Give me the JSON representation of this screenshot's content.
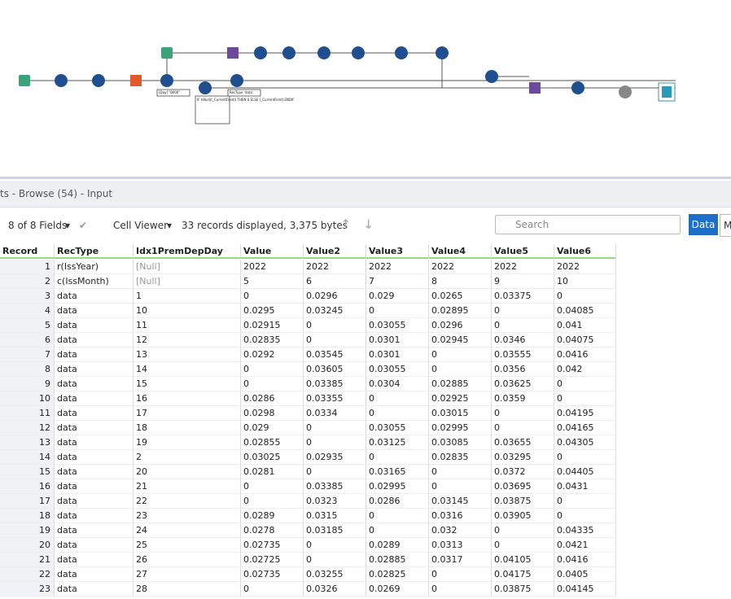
{
  "panel_title": "ts - Browse (54) - Input",
  "toolbar": {
    "fields": "8 of 8 Fields",
    "viewer": "Cell Viewer",
    "summary": "33 records displayed, 3,375 bytes",
    "search": "Search",
    "data_button": "Data",
    "m_button": "M"
  },
  "table": {
    "columns": [
      "Record",
      "RecType",
      "Idx1PremDepDay",
      "Value",
      "Value2",
      "Value3",
      "Value4",
      "Value5",
      "Value6"
    ],
    "rows": [
      [
        "1",
        "r(IssYear)",
        "[Null]",
        "2022",
        "2022",
        "2022",
        "2022",
        "2022",
        "2022"
      ],
      [
        "2",
        "c(IssMonth)",
        "[Null]",
        "5",
        "6",
        "7",
        "8",
        "9",
        "10"
      ],
      [
        "3",
        "data",
        "1",
        "0",
        "0.0296",
        "0.029",
        "0.0265",
        "0.03375",
        "0"
      ],
      [
        "4",
        "data",
        "10",
        "0.0295",
        "0.03245",
        "0",
        "0.02895",
        "0",
        "0.04085"
      ],
      [
        "5",
        "data",
        "11",
        "0.02915",
        "0",
        "0.03055",
        "0.0296",
        "0",
        "0.041"
      ],
      [
        "6",
        "data",
        "12",
        "0.02835",
        "0",
        "0.0301",
        "0.02945",
        "0.0346",
        "0.04075"
      ],
      [
        "7",
        "data",
        "13",
        "0.0292",
        "0.03545",
        "0.0301",
        "0",
        "0.03555",
        "0.0416"
      ],
      [
        "8",
        "data",
        "14",
        "0",
        "0.03605",
        "0.03055",
        "0",
        "0.0356",
        "0.042"
      ],
      [
        "9",
        "data",
        "15",
        "0",
        "0.03385",
        "0.0304",
        "0.02885",
        "0.03625",
        "0"
      ],
      [
        "10",
        "data",
        "16",
        "0.0286",
        "0.03355",
        "0",
        "0.02925",
        "0.0359",
        "0"
      ],
      [
        "11",
        "data",
        "17",
        "0.0298",
        "0.0334",
        "0",
        "0.03015",
        "0",
        "0.04195"
      ],
      [
        "12",
        "data",
        "18",
        "0.029",
        "0",
        "0.03055",
        "0.02995",
        "0",
        "0.04165"
      ],
      [
        "13",
        "data",
        "19",
        "0.02855",
        "0",
        "0.03125",
        "0.03085",
        "0.03655",
        "0.04305"
      ],
      [
        "14",
        "data",
        "2",
        "0.03025",
        "0.02935",
        "0",
        "0.02835",
        "0.03295",
        "0"
      ],
      [
        "15",
        "data",
        "20",
        "0.0281",
        "0",
        "0.03165",
        "0",
        "0.0372",
        "0.04405"
      ],
      [
        "16",
        "data",
        "21",
        "0",
        "0.03385",
        "0.02995",
        "0",
        "0.03695",
        "0.0431"
      ],
      [
        "17",
        "data",
        "22",
        "0",
        "0.0323",
        "0.0286",
        "0.03145",
        "0.03875",
        "0"
      ],
      [
        "18",
        "data",
        "23",
        "0.0289",
        "0.0315",
        "0",
        "0.0316",
        "0.03905",
        "0"
      ],
      [
        "19",
        "data",
        "24",
        "0.0278",
        "0.03185",
        "0",
        "0.032",
        "0",
        "0.04335"
      ],
      [
        "20",
        "data",
        "25",
        "0.02735",
        "0",
        "0.0289",
        "0.0313",
        "0",
        "0.0421"
      ],
      [
        "21",
        "data",
        "26",
        "0.02725",
        "0",
        "0.02885",
        "0.0317",
        "0.04105",
        "0.0416"
      ],
      [
        "22",
        "data",
        "27",
        "0.02735",
        "0.03255",
        "0.02825",
        "0",
        "0.04175",
        "0.0405"
      ],
      [
        "23",
        "data",
        "28",
        "0",
        "0.0326",
        "0.0269",
        "0",
        "0.03875",
        "0.04145"
      ]
    ]
  },
  "workflow_notes": [
    "[Day] \"0000\"",
    "RecType 'data'",
    "IF IsNull([_CurrentField]) THEN 0 ELSE [_CurrentField] ENDIF"
  ]
}
